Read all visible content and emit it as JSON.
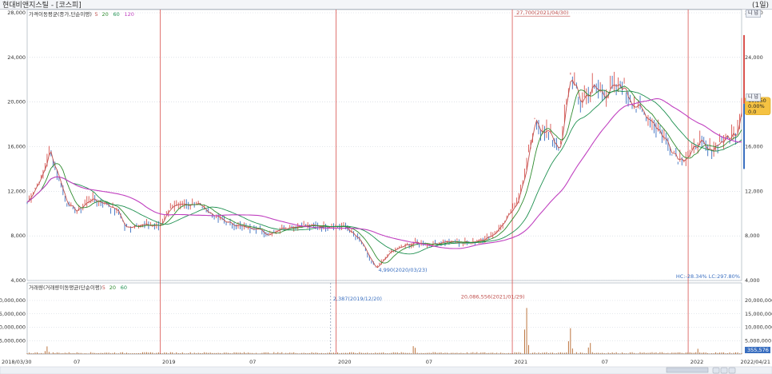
{
  "window": {
    "title": "현대비앤지스틸 - [코스피]",
    "unit": "(1일)"
  },
  "price_panel": {
    "legend_title": "가격이동평균(종가,단순이평)",
    "ma_periods": [
      "5",
      "20",
      "60",
      "120"
    ],
    "ma_colors": [
      "#c0504d",
      "#2e8b2e",
      "#1e9050",
      "#c040c0"
    ],
    "y_ticks": [
      "28,000",
      "24,000",
      "20,000",
      "16,000",
      "12,000",
      "8,000",
      "4,000"
    ],
    "right_ticks": [
      "28,000",
      "24,000",
      "20,000",
      "16,000",
      "12,000",
      "8,000",
      "4,000"
    ],
    "high_annotation": "27,700(2021/04/30)",
    "low_annotation": "4,990(2020/03/23)",
    "hc_lc": "HC:-28.34%  LC:297.80%",
    "current_badge": [
      "19,850",
      "0.00%",
      "0.0"
    ],
    "right_buttons": "니 넘",
    "right_buttons2": "니 넘"
  },
  "volume_panel": {
    "legend_title": "거래량(거래량이동평균(단순이평)",
    "ma_periods": [
      "5",
      "20",
      "60"
    ],
    "y_ticks": [
      "20,000,000",
      "15,000,000",
      "10,000,000",
      "5,000,000"
    ],
    "right_ticks": [
      "20,000,000",
      "15,000,000",
      "10,000,000",
      "5,000,000"
    ],
    "peak_annotation": "20,086,556(2021/01/29)",
    "vline_annotation": "2,387(2019/12/20)",
    "current_vol": "355,576"
  },
  "x_axis": {
    "labels": [
      "2018/03/30",
      "07",
      "2019",
      "07",
      "2020",
      "07",
      "2021",
      "07",
      "2022",
      "2022/04/21"
    ]
  },
  "chart_data": {
    "type": "line",
    "title": "",
    "series": [
      {
        "name": "종가",
        "points": [
          [
            "2018-03-30",
            11000
          ],
          [
            "2018-05-01",
            13500
          ],
          [
            "2018-05-15",
            15600
          ],
          [
            "2018-06-01",
            13600
          ],
          [
            "2018-06-20",
            11000
          ],
          [
            "2018-07-10",
            10200
          ],
          [
            "2018-08-10",
            11300
          ],
          [
            "2018-09-10",
            10900
          ],
          [
            "2018-10-05",
            10200
          ],
          [
            "2018-10-20",
            8700
          ],
          [
            "2018-11-15",
            9000
          ],
          [
            "2018-12-31",
            8900
          ],
          [
            "2019-01-20",
            10500
          ],
          [
            "2019-02-20",
            10800
          ],
          [
            "2019-03-20",
            10900
          ],
          [
            "2019-04-15",
            10000
          ],
          [
            "2019-05-20",
            9200
          ],
          [
            "2019-06-20",
            8800
          ],
          [
            "2019-07-20",
            8700
          ],
          [
            "2019-08-10",
            8100
          ],
          [
            "2019-09-10",
            8700
          ],
          [
            "2019-10-20",
            8900
          ],
          [
            "2019-12-20",
            8900
          ],
          [
            "2020-01-20",
            8800
          ],
          [
            "2020-02-20",
            7500
          ],
          [
            "2020-03-23",
            5000
          ],
          [
            "2020-04-20",
            6500
          ],
          [
            "2020-05-20",
            7100
          ],
          [
            "2020-06-15",
            7400
          ],
          [
            "2020-07-15",
            7200
          ],
          [
            "2020-08-15",
            7500
          ],
          [
            "2020-09-15",
            7400
          ],
          [
            "2020-10-15",
            7500
          ],
          [
            "2020-11-20",
            8000
          ],
          [
            "2020-12-15",
            9400
          ],
          [
            "2021-01-10",
            11000
          ],
          [
            "2021-01-29",
            14000
          ],
          [
            "2021-02-15",
            18000
          ],
          [
            "2021-03-10",
            17500
          ],
          [
            "2021-04-10",
            15800
          ],
          [
            "2021-04-30",
            22500
          ],
          [
            "2021-05-20",
            20000
          ],
          [
            "2021-06-15",
            21200
          ],
          [
            "2021-07-15",
            20800
          ],
          [
            "2021-08-15",
            21500
          ],
          [
            "2021-09-15",
            19500
          ],
          [
            "2021-10-15",
            18500
          ],
          [
            "2021-11-10",
            16800
          ],
          [
            "2021-12-10",
            15000
          ],
          [
            "2022-01-05",
            15200
          ],
          [
            "2022-01-20",
            16500
          ],
          [
            "2022-02-10",
            15500
          ],
          [
            "2022-03-01",
            16300
          ],
          [
            "2022-03-25",
            16800
          ],
          [
            "2022-04-10",
            17200
          ],
          [
            "2022-04-21",
            19850
          ]
        ]
      },
      {
        "name": "5",
        "source": "ma"
      },
      {
        "name": "20",
        "source": "ma"
      },
      {
        "name": "60",
        "source": "ma"
      },
      {
        "name": "120",
        "source": "ma"
      }
    ],
    "vlines": [
      "2018-12-31",
      "2019-12-31",
      "2020-12-31",
      "2021-12-31"
    ],
    "volume_peaks": [
      [
        "2018-05-10",
        3000000
      ],
      [
        "2020-06-10",
        4000000
      ],
      [
        "2021-01-29",
        20086556
      ],
      [
        "2021-04-30",
        11000000
      ],
      [
        "2021-06-10",
        5000000
      ],
      [
        "2022-01-20",
        2000000
      ]
    ],
    "ylim": [
      4000,
      28000
    ],
    "volume_ylim": [
      0,
      20000000
    ],
    "xlim": [
      "2018-03-30",
      "2022-04-21"
    ],
    "grid": true,
    "legend": "top-left"
  }
}
